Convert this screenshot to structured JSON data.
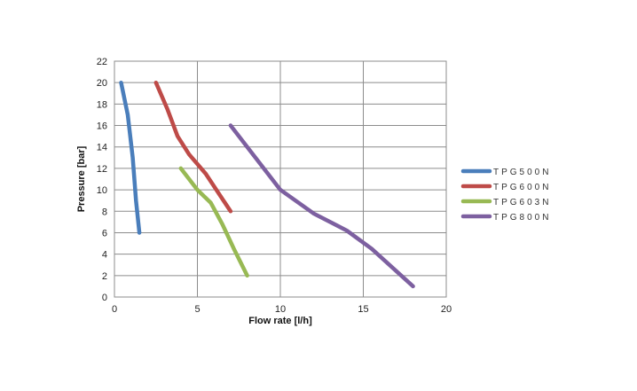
{
  "chart_data": {
    "type": "line",
    "title": "",
    "xlabel": "Flow rate [l/h]",
    "ylabel": "Pressure [bar]",
    "xlim": [
      0,
      20
    ],
    "ylim": [
      0,
      22
    ],
    "x_ticks": [
      "0",
      "5",
      "10",
      "15",
      "20"
    ],
    "y_ticks": [
      "0",
      "2",
      "4",
      "6",
      "8",
      "10",
      "12",
      "14",
      "16",
      "18",
      "20",
      "22"
    ],
    "grid": true,
    "legend_position": "right",
    "series": [
      {
        "name": "TPG500N",
        "color": "#4a7ebb",
        "points": [
          [
            0.4,
            20
          ],
          [
            0.8,
            17
          ],
          [
            1.1,
            13
          ],
          [
            1.3,
            9
          ],
          [
            1.5,
            6
          ]
        ]
      },
      {
        "name": "TPG600N",
        "color": "#be4b48",
        "points": [
          [
            2.5,
            20
          ],
          [
            3.2,
            17.5
          ],
          [
            3.8,
            15
          ],
          [
            4.5,
            13.3
          ],
          [
            5.5,
            11.5
          ],
          [
            7,
            8
          ]
        ]
      },
      {
        "name": "TPG603N",
        "color": "#98b954",
        "points": [
          [
            4,
            12
          ],
          [
            5,
            10
          ],
          [
            5.8,
            8.8
          ],
          [
            6.5,
            6.8
          ],
          [
            7.2,
            4.5
          ],
          [
            8,
            2
          ]
        ]
      },
      {
        "name": "TPG800N",
        "color": "#7d60a0",
        "points": [
          [
            7,
            16
          ],
          [
            8.5,
            13
          ],
          [
            10,
            10
          ],
          [
            12,
            7.8
          ],
          [
            14,
            6.2
          ],
          [
            15.5,
            4.5
          ],
          [
            18,
            1
          ]
        ]
      }
    ]
  }
}
